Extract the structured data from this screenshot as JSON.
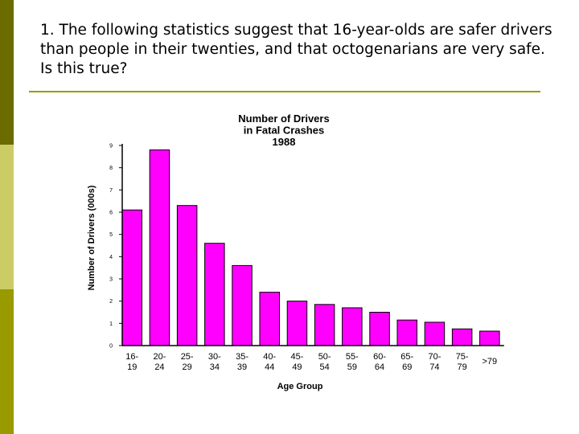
{
  "slide": {
    "question": "1.  The following statistics suggest that 16-year-olds are safer drivers than people in their twenties, and that octogenarians are very safe.  Is this true?",
    "colors": {
      "bar_top": "#6b6b00",
      "bar_mid": "#cccc66",
      "bar_bottom": "#999900",
      "rule": "#999900"
    }
  },
  "chart_data": {
    "type": "bar",
    "title_lines": [
      "Number of Drivers",
      "in Fatal Crashes",
      "1988"
    ],
    "categories": [
      [
        "16-",
        "19"
      ],
      [
        "20-",
        "24"
      ],
      [
        "25-",
        "29"
      ],
      [
        "30-",
        "34"
      ],
      [
        "35-",
        "39"
      ],
      [
        "40-",
        "44"
      ],
      [
        "45-",
        "49"
      ],
      [
        "50-",
        "54"
      ],
      [
        "55-",
        "59"
      ],
      [
        "60-",
        "64"
      ],
      [
        "65-",
        "69"
      ],
      [
        "70-",
        "74"
      ],
      [
        "75-",
        "79"
      ],
      [
        ">79"
      ]
    ],
    "values": [
      6.1,
      8.8,
      6.3,
      4.6,
      3.6,
      2.4,
      2.0,
      1.85,
      1.7,
      1.5,
      1.15,
      1.05,
      0.75,
      0.65
    ],
    "xlabel": "Age Group",
    "ylabel": "Number of Drivers (000s)",
    "ylim": [
      0,
      9
    ],
    "yticks": [
      "0",
      "1",
      "2",
      "3",
      "4",
      "5",
      "6",
      "7",
      "8",
      "9"
    ],
    "bar_color": "#ff00ff",
    "bar_edge": "#000000",
    "grid": false
  }
}
